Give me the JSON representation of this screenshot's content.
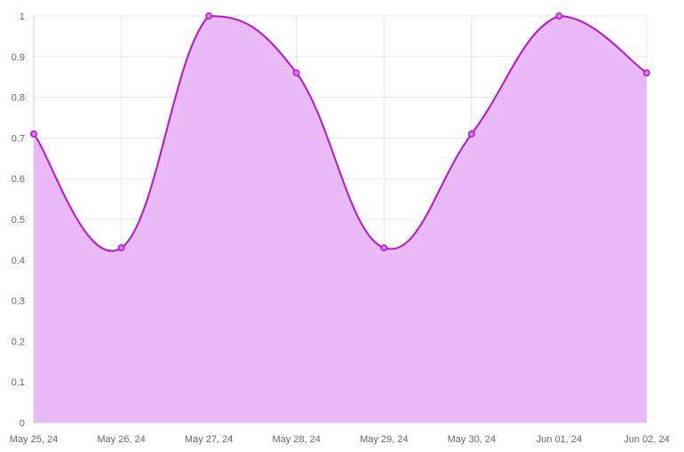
{
  "chart_data": {
    "type": "area",
    "categories": [
      "May 25, 24",
      "May 26, 24",
      "May 27, 24",
      "May 28, 24",
      "May 29, 24",
      "May 30, 24",
      "Jun 01, 24",
      "Jun 02, 24"
    ],
    "series": [
      {
        "values": [
          0.71,
          0.43,
          1.0,
          0.86,
          0.43,
          0.71,
          1.0,
          0.86
        ]
      }
    ],
    "ylim": [
      0,
      1
    ],
    "yticks": [
      0,
      0.1,
      0.2,
      0.3,
      0.4,
      0.5,
      0.6,
      0.7,
      0.8,
      0.9,
      1
    ],
    "grid": true,
    "legend": "none",
    "colors": {
      "line": "#b514d6",
      "fill": "#e9b6f6",
      "point_fill": "#d680ec",
      "grid": "#e8e8e8",
      "axis": "#d0d0d0",
      "tick_text": "#666666"
    }
  }
}
